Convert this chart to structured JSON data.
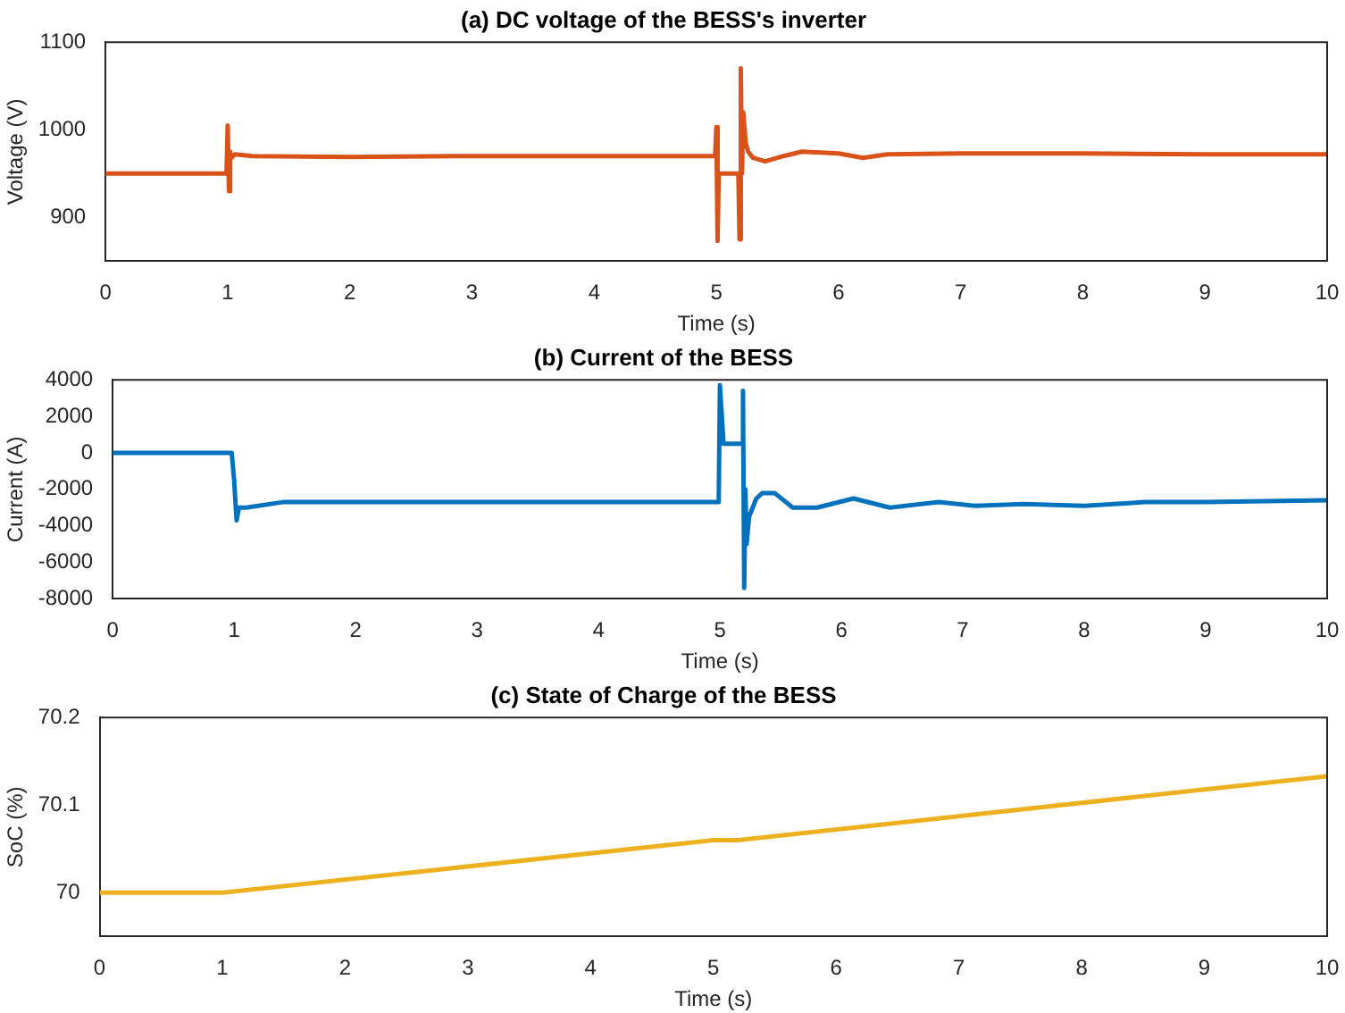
{
  "chart_data": [
    {
      "type": "line",
      "title": "(a) DC voltage of the BESS's inverter",
      "xlabel": "Time (s)",
      "ylabel": "Voltage (V)",
      "xlim": [
        0,
        10
      ],
      "xticks": [
        0,
        1,
        2,
        3,
        4,
        5,
        6,
        7,
        8,
        9,
        10
      ],
      "ylim": [
        850,
        1100
      ],
      "yticks": [
        900,
        1000,
        1100
      ],
      "grid": false,
      "legend": false,
      "marker": "none",
      "line_style": "solid",
      "series": [
        {
          "color": "#d95319",
          "x": [
            0,
            0.99,
            1.0,
            1.01,
            1.02,
            1.03,
            1.06,
            1.2,
            2,
            3,
            4,
            4.98,
            4.99,
            5.0,
            5.01,
            5.02,
            5.03,
            5.18,
            5.19,
            5.2,
            5.21,
            5.22,
            5.24,
            5.26,
            5.3,
            5.4,
            5.55,
            5.7,
            6,
            6.2,
            6.4,
            7,
            8,
            9,
            10
          ],
          "values": [
            950,
            950,
            1005,
            930,
            975,
            968,
            972,
            970,
            969,
            970,
            970,
            970,
            970,
            1003,
            873,
            950,
            950,
            950,
            875,
            1070,
            950,
            1020,
            985,
            975,
            968,
            964,
            970,
            975,
            973,
            968,
            972,
            973,
            973,
            972,
            972
          ]
        }
      ]
    },
    {
      "type": "line",
      "title": "(b) Current of the BESS",
      "xlabel": "Time (s)",
      "ylabel": "Current (A)",
      "xlim": [
        0,
        10
      ],
      "xticks": [
        0,
        1,
        2,
        3,
        4,
        5,
        6,
        7,
        8,
        9,
        10
      ],
      "ylim": [
        -8000,
        4000
      ],
      "yticks": [
        -8000,
        -6000,
        -4000,
        -2000,
        0,
        2000,
        4000
      ],
      "grid": false,
      "legend": false,
      "marker": "none",
      "line_style": "solid",
      "series": [
        {
          "color": "#0072bd",
          "x": [
            0,
            0.98,
            1.0,
            1.02,
            1.04,
            1.1,
            1.4,
            2,
            3,
            4,
            4.99,
            5.0,
            5.03,
            5.06,
            5.18,
            5.19,
            5.2,
            5.21,
            5.22,
            5.24,
            5.27,
            5.3,
            5.35,
            5.45,
            5.6,
            5.8,
            6.1,
            6.4,
            6.8,
            7.1,
            7.5,
            8.0,
            8.5,
            9,
            10
          ],
          "values": [
            0,
            0,
            -1500,
            -3700,
            -3000,
            -3000,
            -2700,
            -2700,
            -2700,
            -2700,
            -2700,
            3700,
            500,
            500,
            500,
            3400,
            -7400,
            -2000,
            -5000,
            -3500,
            -3000,
            -2500,
            -2200,
            -2200,
            -3000,
            -3000,
            -2500,
            -3000,
            -2700,
            -2900,
            -2800,
            -2900,
            -2700,
            -2700,
            -2600
          ]
        }
      ]
    },
    {
      "type": "line",
      "title": "(c) State of Charge of the BESS",
      "xlabel": "Time (s)",
      "ylabel": "SoC (%)",
      "xlim": [
        0,
        10
      ],
      "xticks": [
        0,
        1,
        2,
        3,
        4,
        5,
        6,
        7,
        8,
        9,
        10
      ],
      "ylim": [
        69.95,
        70.2
      ],
      "yticks": [
        70,
        70.1,
        70.2
      ],
      "grid": false,
      "legend": false,
      "marker": "none",
      "line_style": "solid",
      "series": [
        {
          "color": "#edb120",
          "x": [
            0,
            1,
            5,
            5.2,
            10
          ],
          "values": [
            70,
            70,
            70.06,
            70.06,
            70.133
          ]
        }
      ]
    }
  ]
}
